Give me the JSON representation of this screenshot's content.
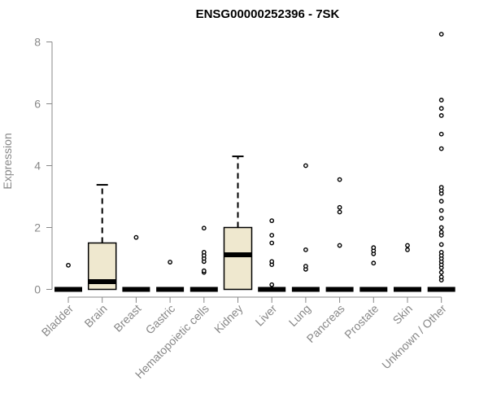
{
  "colors": {
    "box_fill": "#efe8cf",
    "stroke": "#000000",
    "axis": "#888888",
    "text_muted": "#888888",
    "title": "#000000"
  },
  "chart_data": {
    "type": "boxplot",
    "title": "ENSG00000252396 - 7SK",
    "xlabel": "",
    "ylabel": "Expression",
    "ylim": [
      0,
      8.4
    ],
    "yticks": [
      0,
      2,
      4,
      6,
      8
    ],
    "grid": false,
    "categories": [
      "Bladder",
      "Brain",
      "Breast",
      "Gastric",
      "Hematopoietic cells",
      "Kidney",
      "Liver",
      "Lung",
      "Pancreas",
      "Prostate",
      "Skin",
      "Unknown / Other"
    ],
    "boxes": [
      {
        "category": "Bladder",
        "q1": 0,
        "median": 0,
        "q3": 0,
        "whisker_low": 0,
        "whisker_high": 0,
        "outliers": [
          0.78
        ]
      },
      {
        "category": "Brain",
        "q1": 0,
        "median": 0.25,
        "q3": 1.5,
        "whisker_low": 0,
        "whisker_high": 3.38,
        "outliers": []
      },
      {
        "category": "Breast",
        "q1": 0,
        "median": 0,
        "q3": 0,
        "whisker_low": 0,
        "whisker_high": 0,
        "outliers": [
          1.68
        ]
      },
      {
        "category": "Gastric",
        "q1": 0,
        "median": 0,
        "q3": 0,
        "whisker_low": 0,
        "whisker_high": 0,
        "outliers": [
          0.88
        ]
      },
      {
        "category": "Hematopoietic cells",
        "q1": 0,
        "median": 0,
        "q3": 0,
        "whisker_low": 0,
        "whisker_high": 0,
        "outliers": [
          0.55,
          0.6,
          0.9,
          1.0,
          1.1,
          1.2,
          1.98
        ]
      },
      {
        "category": "Kidney",
        "q1": 0,
        "median": 1.12,
        "q3": 2.0,
        "whisker_low": 0,
        "whisker_high": 4.3,
        "outliers": []
      },
      {
        "category": "Liver",
        "q1": 0,
        "median": 0,
        "q3": 0,
        "whisker_low": 0,
        "whisker_high": 0,
        "outliers": [
          0.15,
          0.8,
          0.9,
          1.5,
          1.75,
          2.22
        ]
      },
      {
        "category": "Lung",
        "q1": 0,
        "median": 0,
        "q3": 0,
        "whisker_low": 0,
        "whisker_high": 0,
        "outliers": [
          0.65,
          0.75,
          1.28,
          4.0
        ]
      },
      {
        "category": "Pancreas",
        "q1": 0,
        "median": 0,
        "q3": 0,
        "whisker_low": 0,
        "whisker_high": 0,
        "outliers": [
          1.42,
          2.5,
          2.65,
          3.55
        ]
      },
      {
        "category": "Prostate",
        "q1": 0,
        "median": 0,
        "q3": 0,
        "whisker_low": 0,
        "whisker_high": 0,
        "outliers": [
          0.85,
          1.15,
          1.25,
          1.35
        ]
      },
      {
        "category": "Skin",
        "q1": 0,
        "median": 0,
        "q3": 0,
        "whisker_low": 0,
        "whisker_high": 0,
        "outliers": [
          1.28,
          1.42
        ]
      },
      {
        "category": "Unknown / Other",
        "q1": 0,
        "median": 0,
        "q3": 0,
        "whisker_low": 0,
        "whisker_high": 0,
        "outliers": [
          0.3,
          0.4,
          0.55,
          0.7,
          0.8,
          0.9,
          1.0,
          1.1,
          1.2,
          1.45,
          1.75,
          1.85,
          2.0,
          2.3,
          2.55,
          2.85,
          3.1,
          3.2,
          3.3,
          4.55,
          5.02,
          5.62,
          5.85,
          6.12,
          8.25
        ]
      }
    ]
  }
}
